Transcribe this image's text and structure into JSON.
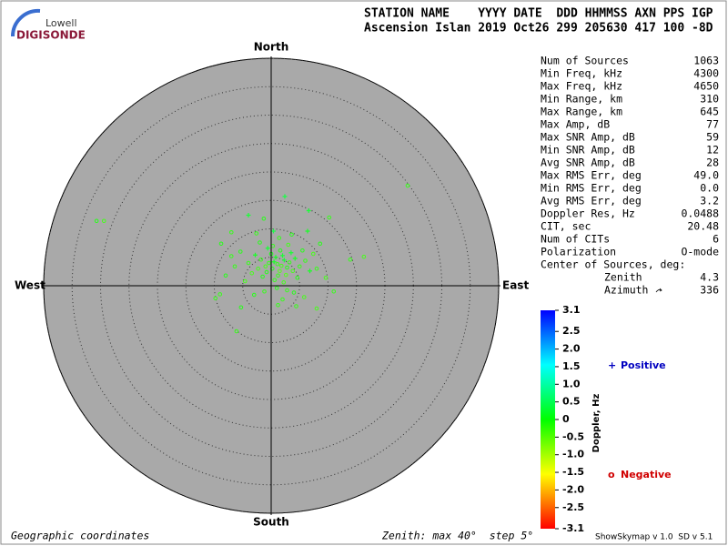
{
  "logo": {
    "brand": "Lowell",
    "name": "DIGISONDE"
  },
  "header": {
    "columns": "STATION NAME    YYYY DATE  DDD HHMMSS AXN PPS IGP",
    "values": "Ascension Islan 2019 Oct26 299 205630 417 100 -8D"
  },
  "chart_data": {
    "type": "polar-scatter",
    "directions": {
      "north": "North",
      "south": "South",
      "east": "East",
      "west": "West"
    },
    "rlim": [
      0,
      40
    ],
    "rticks": [
      5,
      10,
      15,
      20,
      25,
      30,
      35,
      40
    ],
    "points": {
      "east": [
        1.1,
        0.5,
        1.8,
        0.2,
        2.3,
        -0.4,
        1.5,
        2.8,
        0.8,
        -1.0,
        3.2,
        1.2,
        2.0,
        -0.8,
        3.8,
        0.0,
        2.6,
        -1.8,
        4.2,
        1.6,
        -2.3,
        0.6,
        3.5,
        -1.5,
        5.0,
        2.2,
        -2.8,
        4.6,
        0.3,
        -3.4,
        6.0,
        1.0,
        -0.6,
        3.0,
        5.5,
        -4.0,
        2.8,
        -2.0,
        6.8,
        -4.6,
        1.4,
        4.0,
        -1.2,
        7.4,
        -5.4,
        2.0,
        -3.0,
        8.0,
        0.4,
        -6.4,
        3.6,
        5.8,
        -2.6,
        8.6,
        -7.0,
        1.2,
        6.4,
        9.6,
        -8.0,
        4.4,
        24.0,
        -30.7,
        -29.4,
        -6.1,
        2.4,
        -9.8,
        -5.3,
        13.9,
        16.3,
        -7.0,
        -1.3,
        -9.0,
        -4.0,
        11.0,
        8.0,
        -8.8,
        10.2,
        6.6
      ],
      "north": [
        3.8,
        4.2,
        3.5,
        3.0,
        4.5,
        4.0,
        2.6,
        3.2,
        5.0,
        3.4,
        4.1,
        1.8,
        5.3,
        2.4,
        2.6,
        5.6,
        1.9,
        4.6,
        4.8,
        6.2,
        3.0,
        1.0,
        5.8,
        1.6,
        3.4,
        0.6,
        5.4,
        1.4,
        7.0,
        2.2,
        4.4,
        -0.4,
        6.6,
        7.2,
        6.2,
        4.0,
        -0.8,
        7.6,
        2.6,
        0.8,
        8.4,
        -1.2,
        -1.0,
        5.6,
        6.0,
        -2.4,
        -1.6,
        3.0,
        9.6,
        3.4,
        9.0,
        -2.0,
        9.2,
        7.4,
        5.2,
        -3.4,
        9.6,
        1.4,
        1.8,
        -3.6,
        17.6,
        11.4,
        11.4,
        -8.0,
        15.7,
        -2.2,
        -3.8,
        4.6,
        5.1,
        9.4,
        11.8,
        -1.5,
        12.4,
        -1.0,
        -4.0,
        7.4,
        12.0,
        13.2
      ],
      "doppler": [
        -0.2,
        0.1,
        -0.3,
        -0.1,
        0.2,
        -0.2,
        -0.4,
        -0.1,
        0.1,
        -0.3,
        -0.2,
        -0.2,
        0.2,
        -0.1,
        -0.3,
        0.0,
        -0.4,
        -0.2,
        0.1,
        -0.1,
        -0.3,
        -0.2,
        0.2,
        -0.1,
        -0.2,
        -0.3,
        0.1,
        -0.1,
        -0.2,
        -0.3,
        -0.2,
        -0.1,
        0.2,
        -0.3,
        -0.1,
        -0.2,
        -0.2,
        -0.1,
        0.1,
        -0.3,
        -0.2,
        -0.1,
        -0.2,
        -0.3,
        -0.1,
        -0.2,
        -0.1,
        -0.2,
        0.3,
        -0.2,
        -0.1,
        -0.3,
        -0.2,
        -0.1,
        -0.2,
        -0.2,
        0.1,
        -0.3,
        -0.1,
        -0.2,
        -0.2,
        -0.1,
        -0.3,
        -0.2,
        0.3,
        -0.2,
        -0.1,
        -0.2,
        -0.3,
        -0.2,
        -0.1,
        -0.2,
        0.2,
        -0.2,
        -0.3,
        -0.1,
        -0.2,
        0.2
      ]
    },
    "colorbar": {
      "title": "Doppler, Hz",
      "lim": [
        -3.1,
        3.1
      ],
      "ticks": [
        3.1,
        2.5,
        {
          "value": 2,
          "label": "2.0"
        },
        1.5,
        {
          "value": 1,
          "label": "1.0"
        },
        0.5,
        0,
        -0.5,
        {
          "value": -1,
          "label": "-1.0"
        },
        -1.5,
        {
          "value": -2,
          "label": "-2.0"
        },
        -2.5,
        -3.1
      ]
    },
    "legend": {
      "positive": {
        "symbol": "+",
        "label": "Positive"
      },
      "negative": {
        "symbol": "o",
        "label": "Negative"
      }
    }
  },
  "stats": {
    "rows": [
      [
        "Num of Sources",
        1063
      ],
      [
        "Min Freq, kHz",
        4300
      ],
      [
        "Max Freq, kHz",
        4650
      ],
      [
        "Min Range, km",
        310
      ],
      [
        "Max Range, km",
        645
      ],
      [
        "Max Amp, dB",
        77
      ],
      [
        "Max SNR Amp, dB",
        59
      ],
      [
        "Min SNR Amp, dB",
        12
      ],
      [
        "Avg SNR Amp, dB",
        28
      ],
      [
        "Max RMS Err, deg",
        "49.0"
      ],
      [
        "Min RMS Err, deg",
        "0.0"
      ],
      [
        "Avg RMS Err, deg",
        3.2
      ],
      [
        "Doppler Res, Hz",
        0.0488
      ],
      [
        "CIT, sec",
        20.48
      ],
      [
        "Num of CITs",
        6
      ],
      [
        "Polarization",
        "O-mode"
      ]
    ],
    "center": {
      "title": "Center of Sources, deg:",
      "zenith_label": "Zenith",
      "zenith": 4.3,
      "azimuth_label": "Azimuth",
      "azimuth": 336
    }
  },
  "footer": {
    "coordinates": "Geographic coordinates",
    "zenith": "Zenith: max 40°  step 5°",
    "version": "ShowSkymap v 1.0  SD v 5.1"
  }
}
